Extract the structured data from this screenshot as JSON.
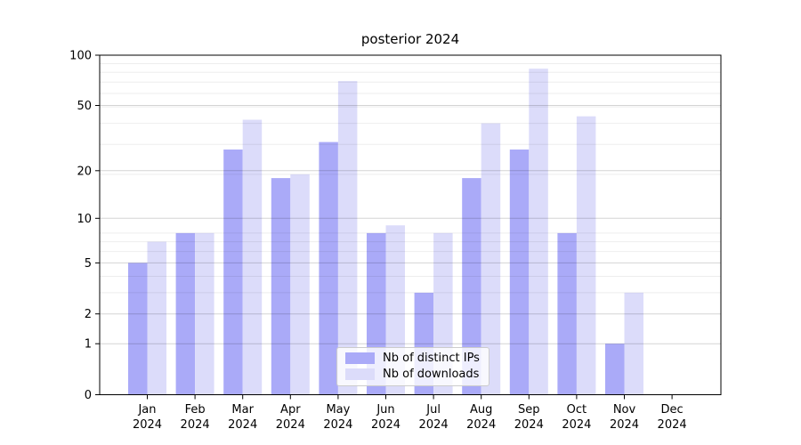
{
  "figure": {
    "title": "posterior 2024"
  },
  "chart_data": {
    "type": "bar",
    "title": "posterior 2024",
    "categories": [
      "Jan",
      "Feb",
      "Mar",
      "Apr",
      "May",
      "Jun",
      "Jul",
      "Aug",
      "Sep",
      "Oct",
      "Nov",
      "Dec"
    ],
    "x_year_line": "2024",
    "series": [
      {
        "name": "Nb of distinct IPs",
        "color": "#aaaaf8",
        "values": [
          5,
          8,
          27,
          18,
          30,
          8,
          3,
          18,
          27,
          8,
          1,
          0
        ]
      },
      {
        "name": "Nb of downloads",
        "color": "#dcdcfa",
        "values": [
          7,
          8,
          41,
          19,
          70,
          9,
          8,
          39,
          83,
          43,
          3,
          0
        ]
      }
    ],
    "yscale": "log1p",
    "ylim": [
      0,
      100
    ],
    "yticks": [
      0,
      1,
      2,
      5,
      10,
      20,
      50,
      100
    ],
    "minor_gridlines": [
      3,
      4,
      6,
      7,
      8,
      19,
      29,
      39,
      49,
      59,
      69,
      79,
      89
    ],
    "grid": "horizontal",
    "legend_position": "lower-center-inside",
    "xlabel": "",
    "ylabel": ""
  },
  "style_colors": {
    "bar_distinct_ips": "#aaaaf8",
    "bar_downloads": "#dcdcfa",
    "major_grid_opacity": 0.17,
    "minor_grid_opacity": 0.07,
    "axis": "#000000"
  }
}
